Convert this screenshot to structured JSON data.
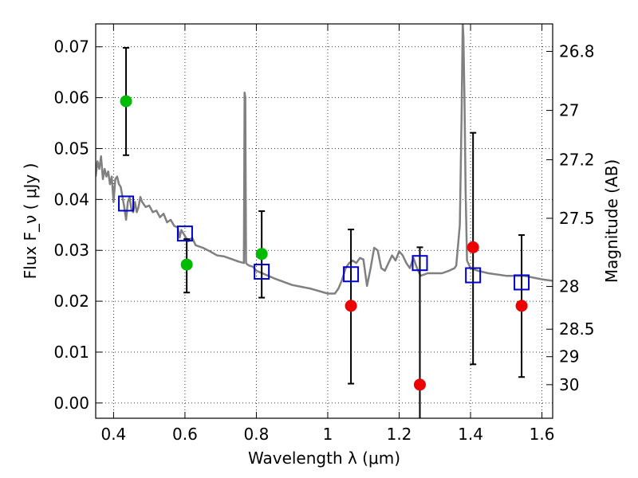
{
  "chart_data": {
    "type": "scatter",
    "xlabel": "Wavelength  λ (μm)",
    "ylabel": "Flux  F_ν  ( μJy )",
    "ylabel_right": "Magnitude (AB)",
    "xlim": [
      0.35,
      1.63
    ],
    "ylim": [
      -0.003,
      0.0745
    ],
    "grid": true,
    "x_ticks": [
      0.4,
      0.6,
      0.8,
      1.0,
      1.2,
      1.4,
      1.6
    ],
    "x_tick_labels": [
      "0.4",
      "0.6",
      "0.8",
      "1",
      "1.2",
      "1.4",
      "1.6"
    ],
    "y_ticks": [
      0.0,
      0.01,
      0.02,
      0.03,
      0.04,
      0.05,
      0.06,
      0.07
    ],
    "y_tick_labels": [
      "0.00",
      "0.01",
      "0.02",
      "0.03",
      "0.04",
      "0.05",
      "0.06",
      "0.07"
    ],
    "right_ticks": [
      {
        "label": "26.8",
        "flux": 0.0691
      },
      {
        "label": "27",
        "flux": 0.0575
      },
      {
        "label": "27.2",
        "flux": 0.0478
      },
      {
        "label": "27.5",
        "flux": 0.0363
      },
      {
        "label": "28",
        "flux": 0.0229
      },
      {
        "label": "28.5",
        "flux": 0.0145
      },
      {
        "label": "29",
        "flux": 0.0091
      },
      {
        "label": "30",
        "flux": 0.0036
      }
    ],
    "series": [
      {
        "kind": "line",
        "color": "#808080",
        "x": [
          0.35,
          0.355,
          0.36,
          0.365,
          0.37,
          0.375,
          0.38,
          0.385,
          0.39,
          0.395,
          0.4,
          0.405,
          0.41,
          0.415,
          0.42,
          0.425,
          0.43,
          0.435,
          0.44,
          0.445,
          0.45,
          0.455,
          0.46,
          0.465,
          0.47,
          0.475,
          0.48,
          0.49,
          0.5,
          0.51,
          0.52,
          0.53,
          0.54,
          0.55,
          0.56,
          0.57,
          0.58,
          0.585,
          0.59,
          0.6,
          0.61,
          0.62,
          0.63,
          0.65,
          0.67,
          0.69,
          0.71,
          0.73,
          0.75,
          0.765,
          0.767,
          0.769,
          0.771,
          0.775,
          0.78,
          0.79,
          0.8,
          0.85,
          0.9,
          0.95,
          1.0,
          1.02,
          1.03,
          1.04,
          1.05,
          1.06,
          1.07,
          1.08,
          1.09,
          1.1,
          1.11,
          1.12,
          1.13,
          1.14,
          1.15,
          1.16,
          1.17,
          1.18,
          1.19,
          1.2,
          1.21,
          1.22,
          1.23,
          1.24,
          1.25,
          1.26,
          1.28,
          1.3,
          1.32,
          1.34,
          1.355,
          1.36,
          1.37,
          1.375,
          1.378,
          1.38,
          1.383,
          1.386,
          1.39,
          1.4,
          1.42,
          1.45,
          1.5,
          1.55,
          1.6,
          1.63
        ],
        "y": [
          0.0445,
          0.0475,
          0.046,
          0.0485,
          0.044,
          0.046,
          0.0445,
          0.0455,
          0.043,
          0.0445,
          0.0395,
          0.044,
          0.0445,
          0.043,
          0.0425,
          0.0405,
          0.0385,
          0.036,
          0.0395,
          0.0405,
          0.038,
          0.0375,
          0.0395,
          0.0375,
          0.0385,
          0.0405,
          0.0395,
          0.0385,
          0.0388,
          0.0375,
          0.0378,
          0.0365,
          0.0372,
          0.0355,
          0.036,
          0.0348,
          0.0345,
          0.0325,
          0.034,
          0.0328,
          0.0318,
          0.0325,
          0.031,
          0.0305,
          0.0298,
          0.029,
          0.0288,
          0.0283,
          0.0278,
          0.0275,
          0.061,
          0.06,
          0.0275,
          0.0272,
          0.027,
          0.0268,
          0.026,
          0.0245,
          0.0232,
          0.0225,
          0.0215,
          0.0215,
          0.0225,
          0.0242,
          0.0265,
          0.0275,
          0.028,
          0.0275,
          0.0285,
          0.0282,
          0.023,
          0.0265,
          0.0305,
          0.03,
          0.0265,
          0.026,
          0.0275,
          0.029,
          0.028,
          0.0298,
          0.029,
          0.0275,
          0.0265,
          0.0285,
          0.0265,
          0.025,
          0.0255,
          0.0255,
          0.0255,
          0.026,
          0.0265,
          0.027,
          0.035,
          0.0565,
          0.075,
          0.072,
          0.06,
          0.042,
          0.028,
          0.0265,
          0.026,
          0.0255,
          0.025,
          0.025,
          0.0243,
          0.024
        ]
      },
      {
        "kind": "points",
        "marker": "circle",
        "color": "#00bb00",
        "x": [
          0.435,
          0.605,
          0.815
        ],
        "y": [
          0.0593,
          0.0272,
          0.0293
        ],
        "yerr_low": [
          0.0487,
          0.0217,
          0.0207
        ],
        "yerr_high": [
          0.0698,
          0.0322,
          0.0377
        ]
      },
      {
        "kind": "points",
        "marker": "circle",
        "color": "#ee0000",
        "x": [
          1.065,
          1.258,
          1.407,
          1.543
        ],
        "y": [
          0.0191,
          0.0036,
          0.0306,
          0.0191
        ],
        "yerr_low": [
          0.0038,
          -0.0045,
          0.0076,
          0.0051
        ],
        "yerr_high": [
          0.0341,
          0.0306,
          0.0531,
          0.033
        ]
      },
      {
        "kind": "points",
        "marker": "square",
        "color": "#0000cc",
        "x": [
          0.435,
          0.6,
          0.815,
          1.065,
          1.258,
          1.407,
          1.543
        ],
        "y": [
          0.0392,
          0.0333,
          0.0258,
          0.0253,
          0.0275,
          0.0251,
          0.0237
        ]
      }
    ]
  }
}
